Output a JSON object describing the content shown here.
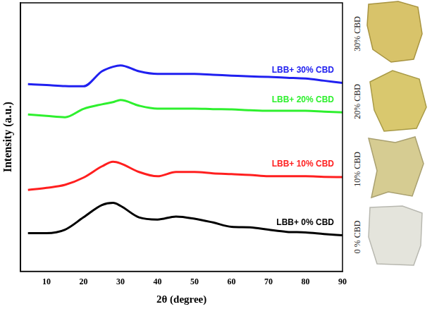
{
  "chart_data": {
    "type": "line",
    "x_label": "2θ (degree)",
    "y_label": "Intensity (a.u.)",
    "x": [
      5,
      10,
      15,
      20,
      25,
      28,
      30,
      35,
      40,
      45,
      50,
      55,
      60,
      65,
      70,
      75,
      80,
      85,
      90
    ],
    "xlim": [
      3,
      90
    ],
    "xticks": [
      10,
      20,
      30,
      40,
      50,
      60,
      70,
      80,
      90
    ],
    "ylim": [
      0,
      100
    ],
    "grid": false,
    "tick_labels": "x",
    "series": [
      {
        "name": "LBB+ 0% CBD",
        "color": "#000000",
        "values": [
          14.2,
          14.2,
          15.5,
          20.1,
          24.7,
          25.5,
          24.4,
          20.1,
          19.3,
          20.4,
          19.6,
          18.2,
          16.6,
          16.4,
          15.5,
          14.7,
          14.5,
          13.9,
          13.4
        ]
      },
      {
        "name": "LBB+ 10% CBD",
        "color": "#ff1f1f",
        "values": [
          30.3,
          31.1,
          32.2,
          34.9,
          39.1,
          40.8,
          40.2,
          37.0,
          35.4,
          37.0,
          37.0,
          36.5,
          36.2,
          35.9,
          35.4,
          35.4,
          35.4,
          35.2,
          35.1
        ]
      },
      {
        "name": "LBB+ 20% CBD",
        "color": "#2ef02e",
        "values": [
          58.4,
          57.9,
          57.4,
          60.5,
          62.2,
          63.0,
          63.8,
          61.7,
          60.6,
          60.6,
          60.6,
          60.4,
          60.3,
          60.0,
          59.8,
          59.8,
          59.8,
          59.5,
          59.2
        ]
      },
      {
        "name": "LBB+ 30% CBD",
        "color": "#2020f0",
        "values": [
          69.7,
          69.4,
          69.0,
          68.9,
          74.5,
          76.2,
          76.7,
          74.5,
          73.5,
          73.5,
          73.5,
          73.2,
          72.9,
          72.6,
          72.4,
          72.1,
          71.8,
          71.0,
          70.2
        ]
      }
    ]
  },
  "sample_photos": {
    "labels": [
      "30% CBD",
      "20% CBD",
      "10% CBD",
      "0 % CBD"
    ]
  }
}
